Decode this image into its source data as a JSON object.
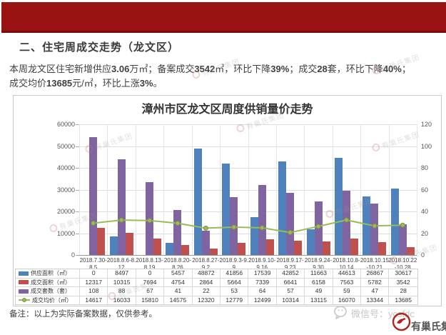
{
  "page": {
    "banner_color": "#9a1212",
    "section_title": "二、住宅周成交走势（龙文区）",
    "summary_segments": [
      {
        "t": "本周龙文区住宅新增供应",
        "b": false
      },
      {
        "t": "3.06",
        "b": true
      },
      {
        "t": "万㎡；备案成交",
        "b": false
      },
      {
        "t": "3542",
        "b": true
      },
      {
        "t": "㎡，环比下降",
        "b": false
      },
      {
        "t": "39%",
        "b": true
      },
      {
        "t": "；成交",
        "b": false
      },
      {
        "t": "28",
        "b": true
      },
      {
        "t": "套，环比下降",
        "b": false
      },
      {
        "t": "40%",
        "b": true
      },
      {
        "t": "；",
        "b": false
      },
      {
        "t": "\n",
        "b": false
      },
      {
        "t": "成交均价",
        "b": false
      },
      {
        "t": "13685",
        "b": true
      },
      {
        "t": "元/㎡，环比上涨",
        "b": false
      },
      {
        "t": "3%",
        "b": true
      },
      {
        "t": "。",
        "b": false
      }
    ],
    "note": "备注：以上为实际备案数据，仅供参考。",
    "watermark_text": "有巢氏集团",
    "footer": {
      "wechat_label": "微信号：ycsfdc",
      "company": "有巢氏集团"
    }
  },
  "chart_data": {
    "type": "bar",
    "title": "漳州市区龙文区周度供销量价走势",
    "grid": true,
    "legend_position": "table-left",
    "categories": [
      [
        "2018.7.30-",
        "8.5"
      ],
      [
        "2018.8.6-8.",
        "12"
      ],
      [
        "2018.8.13-",
        "8.19"
      ],
      [
        "2018.8.20-",
        "8.26"
      ],
      [
        "2018.8.27-",
        "9.2"
      ],
      [
        "2018.9.3-9.",
        "9"
      ],
      [
        "2018.9.10-",
        "9.16"
      ],
      [
        "2018.9.17-",
        "9.23"
      ],
      [
        "2018.9.24-",
        "9.30"
      ],
      [
        "2018.10.8-",
        "10.14"
      ],
      [
        "2018.10.15",
        "-10.21"
      ],
      [
        "2018.10.22",
        "-10.28"
      ]
    ],
    "series": [
      {
        "name": "供应面积（㎡）",
        "type": "bar",
        "axis": "left",
        "color": "#4F81BD",
        "values": [
          0,
          8497,
          0,
          5457,
          48872,
          41856,
          17539,
          42852,
          11663,
          44613,
          26867,
          30617
        ]
      },
      {
        "name": "成交面积（㎡）",
        "type": "bar",
        "axis": "left",
        "color": "#C0504D",
        "values": [
          12317,
          10315,
          7694,
          4754,
          2864,
          5664,
          7339,
          6641,
          6158,
          7563,
          5782,
          3542
        ]
      },
      {
        "name": "成交套数（套）",
        "type": "bar",
        "axis": "right",
        "color": "#8064A2",
        "values": [
          108,
          88,
          67,
          41,
          22,
          53,
          64,
          57,
          49,
          59,
          47,
          28
        ]
      },
      {
        "name": "成交均价（㎡）",
        "type": "line",
        "axis": "left",
        "color": "#9BBB59",
        "values": [
          14617,
          16033,
          15810,
          14575,
          12320,
          12779,
          12499,
          10314,
          13115,
          16070,
          13344,
          13685
        ]
      }
    ],
    "bar_draw_order": [
      0,
      2,
      1
    ],
    "left_axis": {
      "min": 0,
      "max": 60000,
      "step": 10000,
      "ticks": [
        "0",
        "10000",
        "20000",
        "30000",
        "40000",
        "50000",
        "60000"
      ]
    },
    "right_axis": {
      "min": 0,
      "max": 120,
      "step": 20,
      "ticks": [
        "0",
        "20",
        "40",
        "60",
        "80",
        "100",
        "120"
      ]
    }
  }
}
